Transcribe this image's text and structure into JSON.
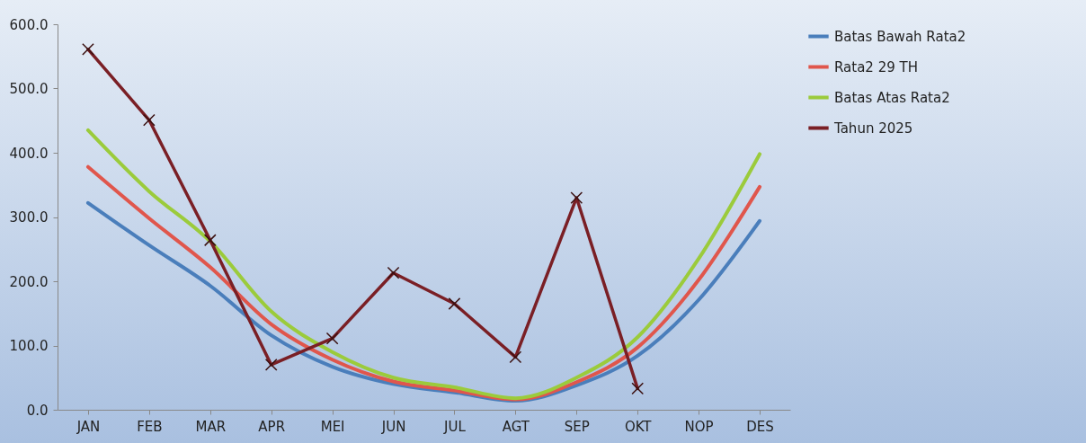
{
  "chart_data": {
    "type": "line",
    "categories": [
      "JAN",
      "FEB",
      "MAR",
      "APR",
      "MEI",
      "JUN",
      "JUL",
      "AGT",
      "SEP",
      "OKT",
      "NOP",
      "DES"
    ],
    "series": [
      {
        "name": "Batas Bawah Rata2",
        "color": "#4a7ebb",
        "marker": "none",
        "values": [
          322,
          256,
          193,
          116,
          67,
          40,
          27,
          14,
          38,
          84,
          171,
          294
        ]
      },
      {
        "name": "Rata2 29 TH",
        "color": "#e0564c",
        "marker": "none",
        "values": [
          378,
          298,
          222,
          133,
          78,
          44,
          30,
          16,
          43,
          97,
          202,
          347
        ]
      },
      {
        "name": "Batas Atas Rata2",
        "color": "#9bcb3b",
        "marker": "none",
        "values": [
          435,
          340,
          262,
          153,
          90,
          50,
          35,
          18,
          50,
          113,
          235,
          398
        ]
      },
      {
        "name": "Tahun 2025",
        "color": "#7a1f25",
        "marker": "cross",
        "values": [
          561,
          451,
          264,
          70,
          111,
          213,
          165,
          82,
          330,
          33,
          null,
          null
        ]
      }
    ],
    "ylim": [
      0,
      600
    ],
    "yticks": [
      {
        "value": 0,
        "label": "0.0"
      },
      {
        "value": 100,
        "label": "100.0"
      },
      {
        "value": 200,
        "label": "200.0"
      },
      {
        "value": 300,
        "label": "300.0"
      },
      {
        "value": 400,
        "label": "400.0"
      },
      {
        "value": 500,
        "label": "500.0"
      },
      {
        "value": 600,
        "label": "600.0"
      }
    ],
    "grid": false,
    "legend": "right"
  }
}
